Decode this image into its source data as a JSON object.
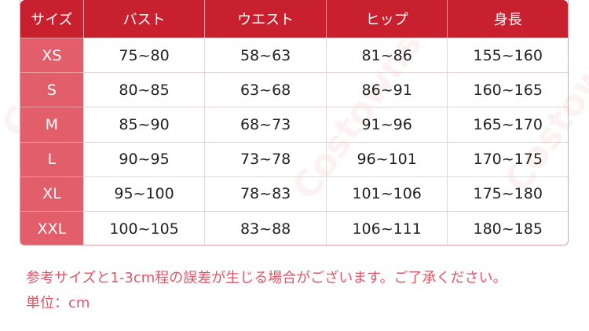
{
  "watermark": "Costowns",
  "table": {
    "headers": [
      "サイズ",
      "バスト",
      "ウエスト",
      "ヒップ",
      "身長"
    ],
    "rows": [
      [
        "XS",
        "75~80",
        "58~63",
        "81~86",
        "155~160"
      ],
      [
        "S",
        "80~85",
        "63~68",
        "86~91",
        "160~165"
      ],
      [
        "M",
        "85~90",
        "68~73",
        "91~96",
        "165~170"
      ],
      [
        "L",
        "90~95",
        "73~78",
        "96~101",
        "170~175"
      ],
      [
        "XL",
        "95~100",
        "78~83",
        "101~106",
        "175~180"
      ],
      [
        "XXL",
        "100~105",
        "83~88",
        "106~111",
        "180~185"
      ]
    ]
  },
  "notes": {
    "disclaimer": "参考サイズと1-3cm程の誤差が生じる場合がございます。ご了承ください。",
    "unit": "単位：cm"
  },
  "colors": {
    "header": "#c8202f",
    "size_column": "#e25e6b",
    "note_text": "#e05565"
  }
}
